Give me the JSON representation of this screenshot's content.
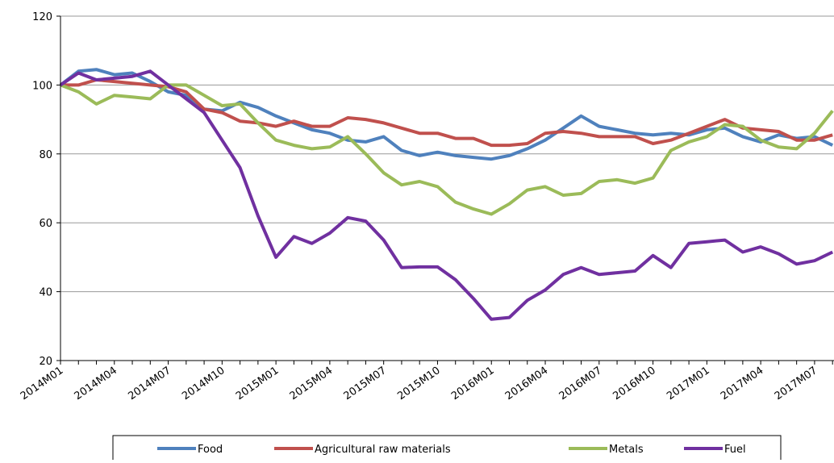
{
  "chart_data": {
    "type": "line",
    "categories": [
      "2014M01",
      null,
      null,
      "2014M04",
      null,
      null,
      "2014M07",
      null,
      null,
      "2014M10",
      null,
      null,
      "2015M01",
      null,
      null,
      "2015M04",
      null,
      null,
      "2015M07",
      null,
      null,
      "2015M10",
      null,
      null,
      "2016M01",
      null,
      null,
      "2016M04",
      null,
      null,
      "2016M07",
      null,
      null,
      "2016M10",
      null,
      null,
      "2017M01",
      null,
      null,
      "2017M04",
      null,
      null,
      "2017M07",
      null
    ],
    "series": [
      {
        "name": "Food",
        "color": "#4f81bd",
        "values": [
          100,
          104,
          104.5,
          103,
          103.5,
          101,
          98,
          97,
          93,
          92.5,
          95,
          93.5,
          91,
          89,
          87,
          86,
          84,
          83.5,
          85,
          81,
          79.5,
          80.5,
          79.5,
          79,
          78.5,
          79.5,
          81.5,
          84,
          87.5,
          91,
          88,
          87,
          86,
          85.5,
          86,
          85.5,
          87,
          87.5,
          85,
          83.5,
          85.5,
          84.5,
          85,
          82.5
        ]
      },
      {
        "name": "Agricultural raw materials",
        "color": "#c0504d",
        "values": [
          100,
          100,
          101.5,
          101,
          100.5,
          100,
          99.5,
          98,
          93,
          92,
          89.5,
          89,
          88,
          89.5,
          88,
          88,
          90.5,
          90,
          89,
          87.5,
          86,
          86,
          84.5,
          84.5,
          82.5,
          82.5,
          83,
          86,
          86.5,
          86,
          85,
          85,
          85,
          83,
          84,
          86,
          88,
          90,
          87.5,
          87,
          86.5,
          84,
          84,
          85.5
        ]
      },
      {
        "name": "Metals",
        "color": "#9bbb59",
        "values": [
          100,
          98,
          94.5,
          97,
          96.5,
          96,
          100,
          100,
          97,
          94,
          94.5,
          89,
          84,
          82.5,
          81.5,
          82,
          85,
          80,
          74.5,
          71,
          72,
          70.5,
          66,
          64,
          62.5,
          65.5,
          69.5,
          70.5,
          68,
          68.5,
          72,
          72.5,
          71.5,
          73,
          81,
          83.5,
          85,
          88.5,
          88,
          84,
          82,
          81.5,
          86,
          92.5
        ]
      },
      {
        "name": "Fuel",
        "color": "#7030a0",
        "values": [
          100,
          103.5,
          101.5,
          102,
          102.5,
          104,
          100,
          96,
          92,
          84,
          76,
          62,
          50,
          56,
          54,
          57,
          61.5,
          60.5,
          55,
          47,
          47.2,
          47.2,
          43.5,
          38,
          32,
          32.5,
          37.5,
          40.5,
          45,
          47,
          45,
          45.5,
          46,
          50.5,
          47,
          54,
          54.5,
          55,
          51.5,
          53,
          51,
          48,
          49,
          51.5
        ]
      }
    ],
    "ylim": [
      20,
      120
    ],
    "yticks": [
      20,
      40,
      60,
      80,
      100,
      120
    ],
    "grid": true,
    "legend": "bottom"
  }
}
